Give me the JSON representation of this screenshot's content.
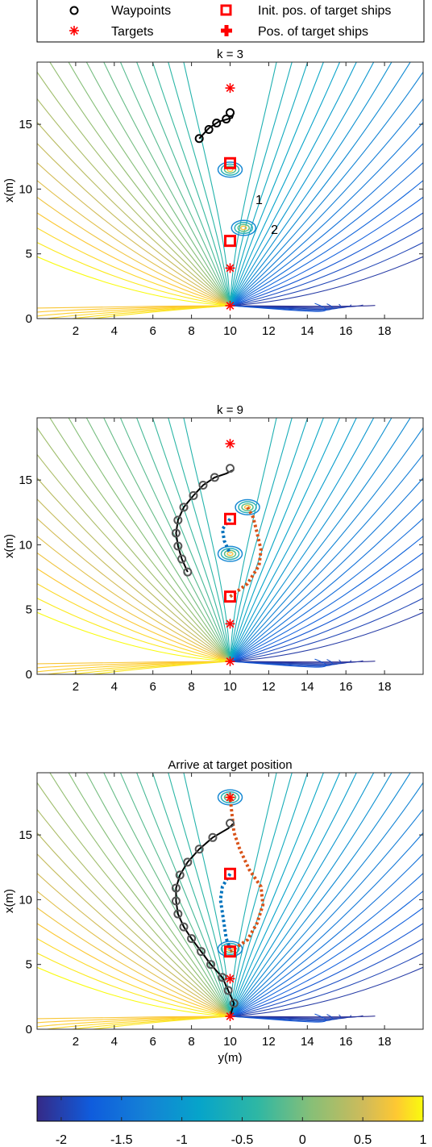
{
  "legend": {
    "entries": [
      {
        "label": "Waypoints",
        "marker": "circle-icon",
        "color": "#000000"
      },
      {
        "label": "Init. pos. of target ships",
        "marker": "square-icon",
        "color": "#ff0000"
      },
      {
        "label": "Targets",
        "marker": "asterisk-icon",
        "color": "#ff0000"
      },
      {
        "label": "Pos. of target ships",
        "marker": "plus-icon",
        "color": "#ff0000"
      }
    ]
  },
  "colorbar": {
    "min": -2.2,
    "max": 1.0,
    "ticks": [
      "-2",
      "-1.5",
      "-1",
      "-0.5",
      "0",
      "0.5",
      "1"
    ],
    "tick_values": [
      -2,
      -1.5,
      -1,
      -0.5,
      0,
      0.5,
      1
    ],
    "colormap": "parula"
  },
  "colors": {
    "waypoint_path": "#000000",
    "ship1_path": "#0072bd",
    "ship2_path": "#d95319",
    "target": "#ff0000",
    "contour_ring": "#35b779"
  },
  "chart_data": [
    {
      "type": "contour",
      "title": "k = 3",
      "xlabel": "",
      "ylabel": "x(m)",
      "xlim": [
        0,
        20
      ],
      "ylim": [
        0,
        19.8
      ],
      "xticks": [
        "2",
        "4",
        "6",
        "8",
        "10",
        "12",
        "14",
        "16",
        "18"
      ],
      "xtick_values": [
        2,
        4,
        6,
        8,
        10,
        12,
        14,
        16,
        18
      ],
      "yticks": [
        "0",
        "5",
        "10",
        "15"
      ],
      "ytick_values": [
        0,
        5,
        10,
        15
      ],
      "source": {
        "y": 10,
        "x": 1
      },
      "targets": [
        {
          "y": 10,
          "x": 17.8
        },
        {
          "y": 10,
          "x": 3.9
        },
        {
          "y": 10,
          "x": 1
        }
      ],
      "init_positions": [
        {
          "y": 10,
          "x": 12
        },
        {
          "y": 10,
          "x": 6
        }
      ],
      "ship_positions": [
        {
          "y": 10,
          "x": 11.5
        },
        {
          "y": 10.7,
          "x": 7
        }
      ],
      "ship_labels": [
        {
          "text": "1",
          "y": 11.5,
          "x": 9.2
        },
        {
          "text": "2",
          "y": 12.3,
          "x": 6.9
        }
      ],
      "waypoints": [
        [
          8.4,
          13.9
        ],
        [
          8.9,
          14.6
        ],
        [
          9.3,
          15.1
        ],
        [
          9.8,
          15.4
        ],
        [
          10.0,
          15.9
        ]
      ],
      "waypoint_line": [
        [
          8.4,
          13.9
        ],
        [
          8.9,
          14.7
        ],
        [
          9.4,
          15.2
        ],
        [
          10.1,
          15.5
        ],
        [
          10.2,
          15.9
        ]
      ],
      "ship1_path": [],
      "ship2_path": []
    },
    {
      "type": "contour",
      "title": "k = 9",
      "xlabel": "",
      "ylabel": "x(m)",
      "xlim": [
        0,
        20
      ],
      "ylim": [
        0,
        19.8
      ],
      "xticks": [
        "2",
        "4",
        "6",
        "8",
        "10",
        "12",
        "14",
        "16",
        "18"
      ],
      "xtick_values": [
        2,
        4,
        6,
        8,
        10,
        12,
        14,
        16,
        18
      ],
      "yticks": [
        "0",
        "5",
        "10",
        "15"
      ],
      "ytick_values": [
        0,
        5,
        10,
        15
      ],
      "source": {
        "y": 10,
        "x": 1
      },
      "targets": [
        {
          "y": 10,
          "x": 17.8
        },
        {
          "y": 10,
          "x": 3.9
        },
        {
          "y": 10,
          "x": 1
        }
      ],
      "init_positions": [
        {
          "y": 10,
          "x": 12
        },
        {
          "y": 10,
          "x": 6
        }
      ],
      "ship_positions": [
        {
          "y": 10,
          "x": 9.3
        },
        {
          "y": 10.9,
          "x": 12.9
        }
      ],
      "ship_labels": [],
      "waypoints": [
        [
          7.8,
          7.9
        ],
        [
          7.5,
          8.9
        ],
        [
          7.3,
          9.9
        ],
        [
          7.2,
          10.9
        ],
        [
          7.3,
          11.9
        ],
        [
          7.6,
          12.9
        ],
        [
          8.1,
          13.8
        ],
        [
          8.6,
          14.6
        ],
        [
          9.2,
          15.2
        ],
        [
          10.0,
          15.9
        ]
      ],
      "waypoint_line": [
        [
          7.8,
          7.9
        ],
        [
          7.5,
          8.9
        ],
        [
          7.3,
          9.9
        ],
        [
          7.2,
          10.9
        ],
        [
          7.3,
          11.9
        ],
        [
          7.6,
          12.9
        ],
        [
          8.1,
          13.8
        ],
        [
          8.6,
          14.6
        ],
        [
          9.2,
          15.2
        ],
        [
          9.8,
          15.5
        ],
        [
          10.2,
          15.8
        ]
      ],
      "ship1_path": [
        [
          10.0,
          12.0
        ],
        [
          9.6,
          11.2
        ],
        [
          9.7,
          10.3
        ],
        [
          10.0,
          9.3
        ]
      ],
      "ship2_path": [
        [
          10.0,
          6.0
        ],
        [
          10.9,
          7.0
        ],
        [
          11.5,
          8.4
        ],
        [
          11.6,
          9.6
        ],
        [
          11.4,
          10.9
        ],
        [
          11.2,
          12.1
        ],
        [
          10.9,
          12.9
        ]
      ]
    },
    {
      "type": "contour",
      "title": "Arrive at target position",
      "xlabel": "y(m)",
      "ylabel": "x(m)",
      "xlim": [
        0,
        20
      ],
      "ylim": [
        0,
        19.8
      ],
      "xticks": [
        "2",
        "4",
        "6",
        "8",
        "10",
        "12",
        "14",
        "16",
        "18"
      ],
      "xtick_values": [
        2,
        4,
        6,
        8,
        10,
        12,
        14,
        16,
        18
      ],
      "yticks": [
        "0",
        "5",
        "10",
        "15"
      ],
      "ytick_values": [
        0,
        5,
        10,
        15
      ],
      "source": {
        "y": 10,
        "x": 1
      },
      "targets": [
        {
          "y": 10,
          "x": 17.9
        },
        {
          "y": 10,
          "x": 3.9
        },
        {
          "y": 10,
          "x": 1
        }
      ],
      "init_positions": [
        {
          "y": 10,
          "x": 12
        },
        {
          "y": 10,
          "x": 6
        }
      ],
      "ship_positions": [
        {
          "y": 10,
          "x": 17.9
        },
        {
          "y": 10,
          "x": 6.2
        }
      ],
      "ship_labels": [],
      "waypoints": [
        [
          10.2,
          2.0
        ],
        [
          9.9,
          3.0
        ],
        [
          9.6,
          4.0
        ],
        [
          9.0,
          5.0
        ],
        [
          8.5,
          6.0
        ],
        [
          8.0,
          7.0
        ],
        [
          7.6,
          7.9
        ],
        [
          7.3,
          8.9
        ],
        [
          7.2,
          9.9
        ],
        [
          7.2,
          10.9
        ],
        [
          7.4,
          11.9
        ],
        [
          7.8,
          12.9
        ],
        [
          8.4,
          13.9
        ],
        [
          9.1,
          14.8
        ],
        [
          10.0,
          15.9
        ]
      ],
      "waypoint_line": [
        [
          10.0,
          1.0
        ],
        [
          10.2,
          2.0
        ],
        [
          9.9,
          3.0
        ],
        [
          9.6,
          4.0
        ],
        [
          9.0,
          5.0
        ],
        [
          8.5,
          6.0
        ],
        [
          8.0,
          7.0
        ],
        [
          7.6,
          7.9
        ],
        [
          7.3,
          8.9
        ],
        [
          7.2,
          9.9
        ],
        [
          7.2,
          10.9
        ],
        [
          7.4,
          11.9
        ],
        [
          7.8,
          12.9
        ],
        [
          8.4,
          13.9
        ],
        [
          9.1,
          14.8
        ],
        [
          9.9,
          15.5
        ],
        [
          10.2,
          15.9
        ]
      ],
      "ship1_path": [
        [
          10.0,
          12.0
        ],
        [
          9.6,
          11.0
        ],
        [
          9.5,
          10.0
        ],
        [
          9.6,
          9.0
        ],
        [
          9.7,
          8.0
        ],
        [
          9.8,
          7.0
        ],
        [
          10.0,
          6.2
        ]
      ],
      "ship2_path": [
        [
          10.0,
          6.0
        ],
        [
          10.9,
          6.9
        ],
        [
          11.4,
          8.2
        ],
        [
          11.7,
          9.6
        ],
        [
          11.6,
          11.0
        ],
        [
          11.0,
          12.3
        ],
        [
          10.5,
          13.9
        ],
        [
          10.2,
          15.2
        ],
        [
          10.0,
          17.9
        ]
      ]
    }
  ]
}
